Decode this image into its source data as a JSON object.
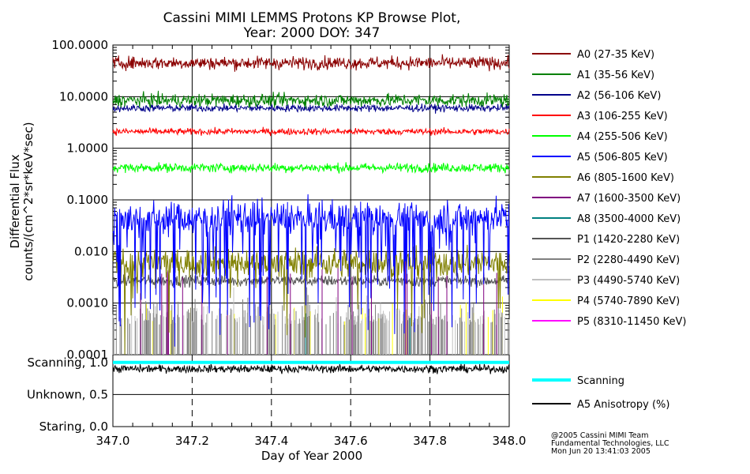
{
  "chart_data": {
    "type": "line",
    "title": "Cassini MIMI LEMMS Protons KP Browse Plot,",
    "subtitle": "Year: 2000 DOY: 347",
    "xlabel": "Day of Year 2000",
    "ylabel_line1": "Differential Flux",
    "ylabel_line2": "counts/(cm^2*sr*keV*sec)",
    "xlim": [
      347.0,
      348.0
    ],
    "ylim": [
      0.0001,
      100
    ],
    "yscale": "log",
    "x_ticks": [
      347.0,
      347.2,
      347.4,
      347.6,
      347.8,
      348.0
    ],
    "x_tick_labels": [
      "347.0",
      "347.2",
      "347.4",
      "347.6",
      "347.8",
      "348.0"
    ],
    "y_tick_labels": [
      "100.0000",
      "10.0000",
      "1.0000",
      "0.1000",
      "0.010",
      "0.0010",
      "0.0001"
    ],
    "y_ticks": [
      100,
      10,
      1,
      0.1,
      0.01,
      0.001,
      0.0001
    ],
    "series": [
      {
        "name": "A0 (27-35 KeV)",
        "color": "#8b0000",
        "level": 45,
        "noise": 0.35,
        "drop": 0,
        "dropDepth": 0
      },
      {
        "name": "A1 (35-56 KeV)",
        "color": "#008000",
        "level": 8.5,
        "noise": 0.35,
        "drop": 0,
        "dropDepth": 0
      },
      {
        "name": "A2 (56-106 KeV)",
        "color": "#00008b",
        "level": 6,
        "noise": 0.2,
        "drop": 0,
        "dropDepth": 0
      },
      {
        "name": "A3 (106-255 KeV)",
        "color": "#ff0000",
        "level": 2.1,
        "noise": 0.18,
        "drop": 0,
        "dropDepth": 0
      },
      {
        "name": "A4 (255-506 KeV)",
        "color": "#00ff00",
        "level": 0.42,
        "noise": 0.25,
        "drop": 0,
        "dropDepth": 0
      },
      {
        "name": "A5 (506-805 KeV)",
        "color": "#0000ff",
        "level": 0.045,
        "noise": 0.9,
        "drop": 0.18,
        "dropDepth": 2.2
      },
      {
        "name": "A6 (805-1600 KeV)",
        "color": "#808000",
        "level": 0.006,
        "noise": 0.8,
        "drop": 0.04,
        "dropDepth": 1.6
      },
      {
        "name": "A7 (1600-3500 KeV)",
        "color": "#800080",
        "level": 0.0012,
        "noise": 0.3,
        "drop": 0,
        "dropDepth": 0,
        "sparse": 0.012
      },
      {
        "name": "A8 (3500-4000 KeV)",
        "color": "#008080",
        "level": 0.0002,
        "noise": 0.2,
        "drop": 0,
        "dropDepth": 0,
        "sparse": 0.002
      },
      {
        "name": "P1 (1420-2280 KeV)",
        "color": "#555555",
        "level": 0.0027,
        "noise": 0.3,
        "drop": 0,
        "dropDepth": 0
      },
      {
        "name": "P2 (2280-4490 KeV)",
        "color": "#808080",
        "level": 0.00015,
        "noise": 0.5,
        "drop": 0,
        "dropDepth": 0,
        "sparse": 0.08
      },
      {
        "name": "P3 (4490-5740 KeV)",
        "color": "#c0c0c0",
        "level": 0.00015,
        "noise": 0.5,
        "drop": 0,
        "dropDepth": 0,
        "sparse": 0.06
      },
      {
        "name": "P4 (5740-7890 KeV)",
        "color": "#ffff00",
        "level": 0.00015,
        "noise": 0.5,
        "drop": 0,
        "dropDepth": 0,
        "sparse": 0.01
      },
      {
        "name": "P5 (8310-11450 KeV)",
        "color": "#ff00ff",
        "level": 0.0001,
        "noise": 0.1,
        "drop": 0,
        "dropDepth": 0,
        "sparse": 0.0
      }
    ],
    "lower_panel": {
      "y_tick_labels": [
        "Scanning, 1.0",
        "Unknown, 0.5",
        "Staring, 0.0"
      ],
      "y_ticks": [
        1.0,
        0.5,
        0.0
      ],
      "series": [
        {
          "name": "Scanning",
          "color": "#00ffff",
          "value": 1.0
        },
        {
          "name": "A5 Anisotropy (%)",
          "color": "#000000",
          "value": 0.9,
          "noise": 0.06
        }
      ]
    }
  },
  "footer": {
    "line1": "@2005 Cassini MIMI Team",
    "line2": "Fundamental Technologies, LLC",
    "line3": "Mon Jun 20 13:41:03 2005"
  }
}
